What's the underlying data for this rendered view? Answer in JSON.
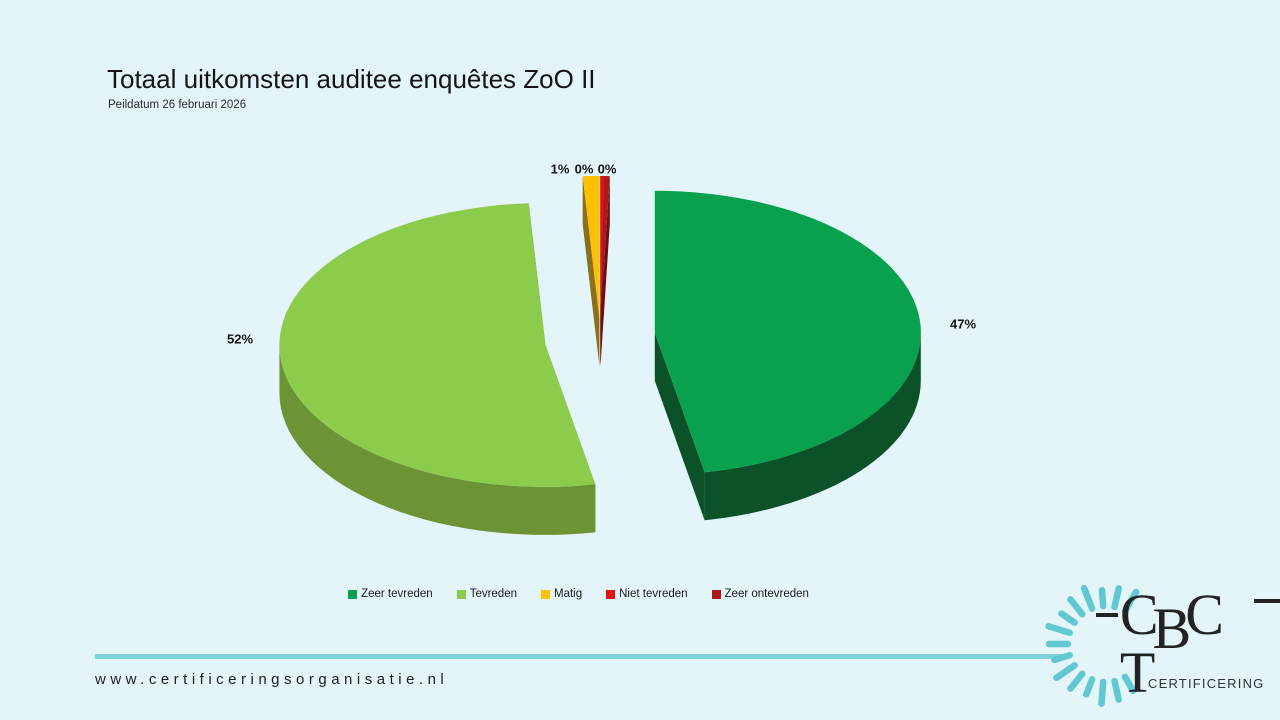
{
  "slide": {
    "title": "Totaal uitkomsten auditee enquêtes ZoO II",
    "subtitle": "Peildatum 26 februari 2026",
    "footer_url": "www.certificeringsorganisatie.nl",
    "background": "#E3F5F8",
    "accent_line_color": "#7FD3DA",
    "logo": {
      "text": "CBCT",
      "subtext": "CERTIFICERING",
      "ray_color": "#5FC8D2",
      "text_color": "#232323"
    }
  },
  "chart_data": {
    "type": "pie",
    "title": "Totaal uitkomsten auditee enquêtes ZoO II",
    "subtitle": "Peildatum 26 februari 2026",
    "effect": "3d-exploded",
    "legend_position": "bottom",
    "slices": [
      {
        "label": "Zeer tevreden",
        "value": 47,
        "pct_label": "47%",
        "color": "#0AA14E",
        "side_color": "#0B5229"
      },
      {
        "label": "Tevreden",
        "value": 52,
        "pct_label": "52%",
        "color": "#8DCB4D",
        "side_color": "#6C9434"
      },
      {
        "label": "Matig",
        "value": 1,
        "pct_label": "1%",
        "color": "#FFC000",
        "side_color": "#8A701D"
      },
      {
        "label": "Niet tevreden",
        "value": 0,
        "pct_label": "0%",
        "color": "#E01111",
        "side_color": "#8B0E0E"
      },
      {
        "label": "Zeer ontevreden",
        "value": 0,
        "pct_label": "0%",
        "color": "#A91B1B",
        "side_color": "#6E0F0F"
      }
    ]
  }
}
